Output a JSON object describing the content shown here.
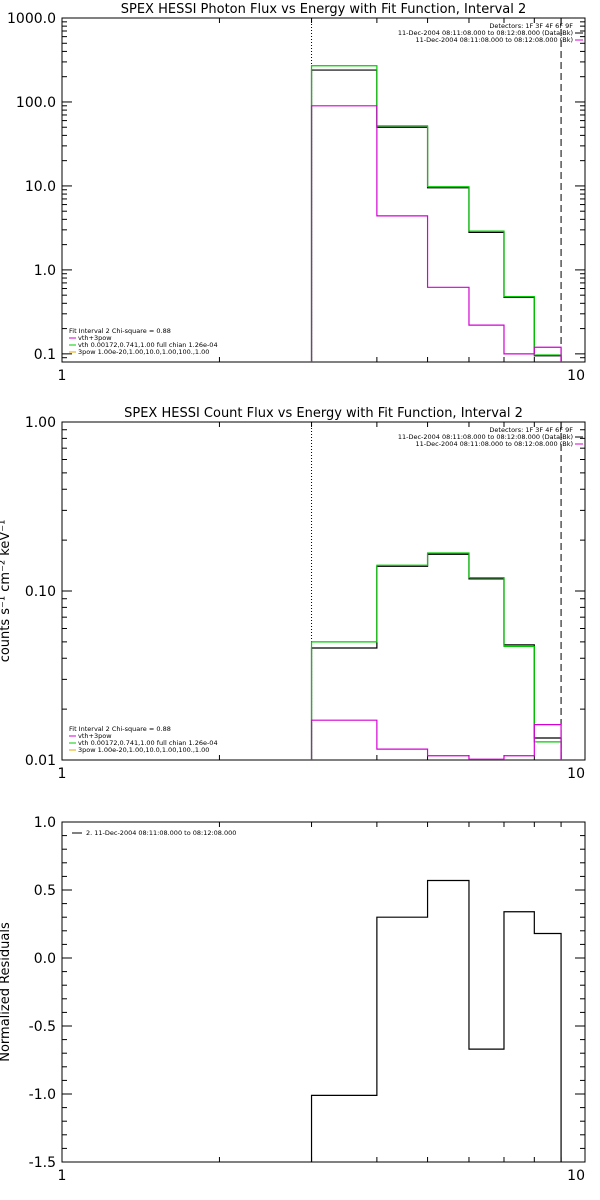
{
  "chart_data": [
    {
      "type": "line",
      "title": "SPEX HESSI Photon Flux vs Energy with Fit Function, Interval 2",
      "xlabel": "",
      "ylabel": "",
      "xscale": "log",
      "yscale": "log",
      "xlim": [
        1,
        10
      ],
      "ylim": [
        0.08,
        1000
      ],
      "x_ticks": [
        "1",
        "10"
      ],
      "y_ticks": [
        "0.1",
        "1.0",
        "10.0",
        "100.0",
        "1000.0"
      ],
      "y_tick_values": [
        0.1,
        1,
        10,
        100,
        1000
      ],
      "vlines": [
        {
          "x": 3,
          "style": "dotted"
        },
        {
          "x": 9,
          "style": "dashed"
        }
      ],
      "info_lines": [
        "Detectors: 1F 3F 4F 6F 9F",
        "11-Dec-2004 08:11:08.000 to 08:12:08.000 (Data-Bk)",
        "11-Dec-2004 08:11:08.000 to 08:12:08.000 (Bk)"
      ],
      "info_colors": [
        "#000000",
        "#000000",
        "#d400d4"
      ],
      "legend_lines": [
        "Fit Interval 2   Chi-square = 0.88",
        "vth+3pow",
        "vth 0.00172,0.741,1.00  full chian 1.26e-04",
        "3pow 1.00e-20,1.00,10.0,1.00,100.,1.00"
      ],
      "legend_colors": [
        "#000000",
        "#d400d4",
        "#00cc00",
        "#e6a800"
      ],
      "bin_edges": [
        3,
        4,
        5,
        6,
        7,
        8,
        9
      ],
      "series": [
        {
          "name": "Data-Bk",
          "color": "#000000",
          "values": [
            240,
            50,
            9.5,
            2.8,
            0.47,
            0.095
          ]
        },
        {
          "name": "vth",
          "color": "#00cc00",
          "values": [
            270,
            52,
            9.8,
            2.9,
            0.48,
            0.097
          ]
        },
        {
          "name": "Bk",
          "color": "#d400d4",
          "values": [
            90,
            4.4,
            0.62,
            0.22,
            0.1,
            0.12
          ]
        }
      ]
    },
    {
      "type": "line",
      "title": "SPEX HESSI Count Flux vs Energy with Fit Function, Interval 2",
      "xlabel": "",
      "ylabel": "counts s⁻¹ cm⁻² keV⁻¹",
      "xscale": "log",
      "yscale": "log",
      "xlim": [
        1,
        10
      ],
      "ylim": [
        0.01,
        1
      ],
      "x_ticks": [
        "1",
        "10"
      ],
      "y_ticks": [
        "0.01",
        "0.10",
        "1.00"
      ],
      "y_tick_values": [
        0.01,
        0.1,
        1
      ],
      "vlines": [
        {
          "x": 3,
          "style": "dotted"
        },
        {
          "x": 9,
          "style": "dashed"
        }
      ],
      "info_lines": [
        "Detectors: 1F 3F 4F 6F 9F",
        "11-Dec-2004 08:11:08.000 to 08:12:08.000 (Data-Bk)",
        "11-Dec-2004 08:11:08.000 to 08:12:08.000 (Bk)"
      ],
      "info_colors": [
        "#000000",
        "#000000",
        "#d400d4"
      ],
      "legend_lines": [
        "Fit Interval 2   Chi-square = 0.88",
        "vth+3pow",
        "vth 0.00172,0.741,1.00  full chian 1.26e-04",
        "3pow 1.00e-20,1.00,10.0,1.00,100.,1.00"
      ],
      "legend_colors": [
        "#000000",
        "#d400d4",
        "#00cc00",
        "#e6a800"
      ],
      "bin_edges": [
        3,
        4,
        5,
        6,
        7,
        8,
        9
      ],
      "series": [
        {
          "name": "Data-Bk",
          "color": "#000000",
          "values": [
            0.046,
            0.14,
            0.165,
            0.118,
            0.048,
            0.0135
          ]
        },
        {
          "name": "vth",
          "color": "#00cc00",
          "values": [
            0.05,
            0.142,
            0.168,
            0.12,
            0.047,
            0.0128
          ]
        },
        {
          "name": "Bk",
          "color": "#d400d4",
          "values": [
            0.0172,
            0.0116,
            0.0106,
            0.0101,
            0.0106,
            0.0162
          ]
        }
      ]
    },
    {
      "type": "line",
      "title": "",
      "xlabel": "",
      "ylabel": "Normalized Residuals",
      "xscale": "log",
      "yscale": "linear",
      "xlim": [
        1,
        10
      ],
      "ylim": [
        -1.5,
        1.0
      ],
      "x_ticks": [
        "1",
        "10"
      ],
      "y_ticks": [
        "-1.5",
        "-1.0",
        "-0.5",
        "0.0",
        "0.5",
        "1.0"
      ],
      "y_tick_values": [
        -1.5,
        -1.0,
        -0.5,
        0.0,
        0.5,
        1.0
      ],
      "vlines": [],
      "info_lines": [],
      "info_colors": [],
      "legend_lines": [
        "2. 11-Dec-2004 08:11:08.000 to 08:12:08.000"
      ],
      "legend_colors": [
        "#000000"
      ],
      "legend_with_line": true,
      "bin_edges": [
        3,
        4,
        5,
        6,
        7,
        8,
        9
      ],
      "series": [
        {
          "name": "",
          "color": "#000000",
          "values": [
            -1.01,
            0.3,
            0.57,
            -0.67,
            0.34,
            0.18
          ],
          "drop_left_to_floor": true
        }
      ]
    }
  ]
}
